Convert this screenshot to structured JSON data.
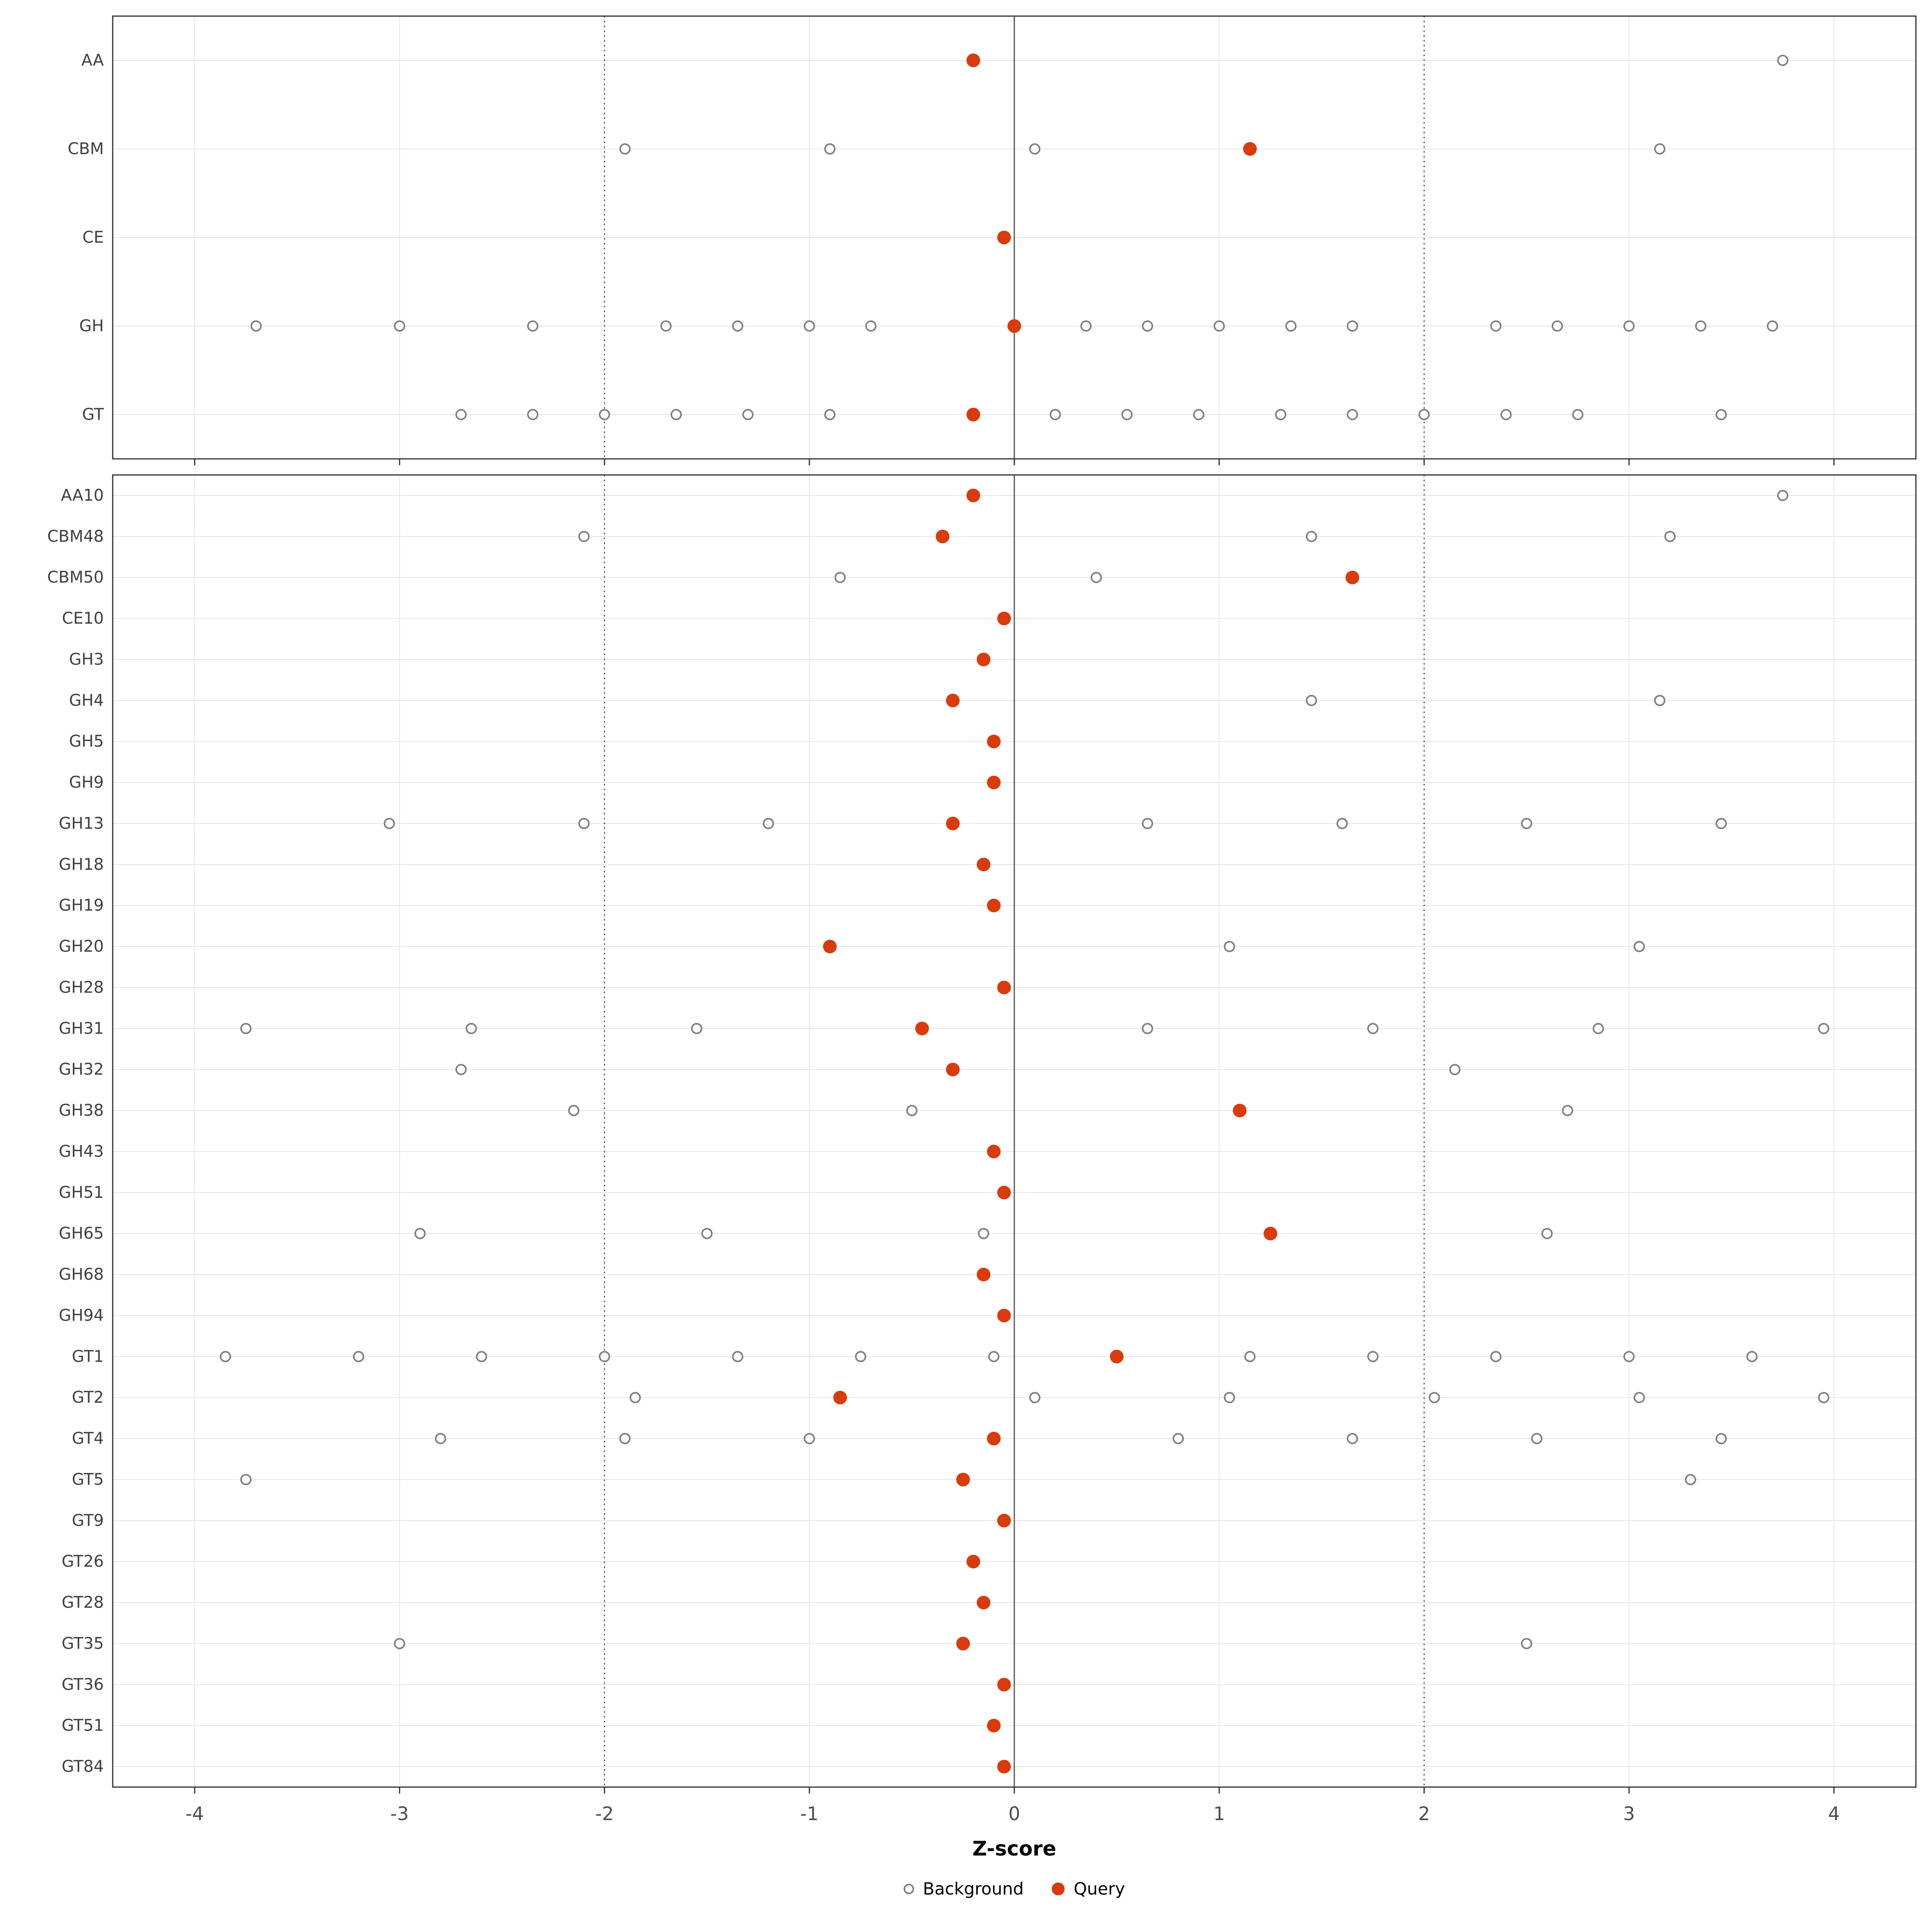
{
  "chart_data": {
    "type": "scatter",
    "title": "",
    "xlabel": "Z-score",
    "ylabel": "",
    "xlim": [
      -4.4,
      4.4
    ],
    "xticks": [
      -4,
      -3,
      -2,
      -1,
      0,
      1,
      2,
      3,
      4
    ],
    "grid": true,
    "legend_position": "bottom",
    "reference_lines": {
      "solid": [
        0
      ],
      "dotted": [
        -2,
        2
      ]
    },
    "legend": [
      {
        "label": "Background",
        "type": "open"
      },
      {
        "label": "Query",
        "type": "filled"
      }
    ],
    "colors": {
      "query": "#D93B0C",
      "background_stroke": "#808080",
      "grid": "#E5E5E5",
      "panel_border": "#333333",
      "zero_line": "#555555",
      "dotted_line": "#222222",
      "axis_text": "#4D4D4D",
      "y_label_text": "#404040"
    },
    "panels": [
      {
        "name": "category",
        "rows": [
          {
            "label": "AA",
            "query": -0.2,
            "background": [
              3.75
            ]
          },
          {
            "label": "CBM",
            "query": 1.15,
            "background": [
              -1.9,
              -0.9,
              0.1,
              3.15
            ]
          },
          {
            "label": "CE",
            "query": -0.05,
            "background": []
          },
          {
            "label": "GH",
            "query": 0.0,
            "background": [
              -3.7,
              -3.0,
              -2.35,
              -1.7,
              -1.35,
              -1.0,
              -0.7,
              0.35,
              0.65,
              1.0,
              1.35,
              1.65,
              2.35,
              2.65,
              3.0,
              3.35,
              3.7
            ]
          },
          {
            "label": "GT",
            "query": -0.2,
            "background": [
              -2.7,
              -2.35,
              -2.0,
              -1.65,
              -1.3,
              -0.9,
              0.2,
              0.55,
              0.9,
              1.3,
              1.65,
              2.0,
              2.4,
              2.75,
              3.45
            ]
          }
        ]
      },
      {
        "name": "family",
        "rows": [
          {
            "label": "AA10",
            "query": -0.2,
            "background": [
              3.75
            ]
          },
          {
            "label": "CBM48",
            "query": -0.35,
            "background": [
              -2.1,
              1.45,
              3.2
            ]
          },
          {
            "label": "CBM50",
            "query": 1.65,
            "background": [
              -0.85,
              0.4
            ]
          },
          {
            "label": "CE10",
            "query": -0.05,
            "background": []
          },
          {
            "label": "GH3",
            "query": -0.15,
            "background": []
          },
          {
            "label": "GH4",
            "query": -0.3,
            "background": [
              1.45,
              3.15
            ]
          },
          {
            "label": "GH5",
            "query": -0.1,
            "background": []
          },
          {
            "label": "GH9",
            "query": -0.1,
            "background": []
          },
          {
            "label": "GH13",
            "query": -0.3,
            "background": [
              -3.05,
              -2.1,
              -1.2,
              0.65,
              1.6,
              2.5,
              3.45
            ]
          },
          {
            "label": "GH18",
            "query": -0.15,
            "background": []
          },
          {
            "label": "GH19",
            "query": -0.1,
            "background": []
          },
          {
            "label": "GH20",
            "query": -0.9,
            "background": [
              1.05,
              3.05
            ]
          },
          {
            "label": "GH28",
            "query": -0.05,
            "background": []
          },
          {
            "label": "GH31",
            "query": -0.45,
            "background": [
              -3.75,
              -2.65,
              -1.55,
              0.65,
              1.75,
              2.85,
              3.95
            ]
          },
          {
            "label": "GH32",
            "query": -0.3,
            "background": [
              -2.7,
              2.15
            ]
          },
          {
            "label": "GH38",
            "query": 1.1,
            "background": [
              -2.15,
              -0.5,
              2.7
            ]
          },
          {
            "label": "GH43",
            "query": -0.1,
            "background": []
          },
          {
            "label": "GH51",
            "query": -0.05,
            "background": []
          },
          {
            "label": "GH65",
            "query": 1.25,
            "background": [
              -2.9,
              -1.5,
              -0.15,
              2.6
            ]
          },
          {
            "label": "GH68",
            "query": -0.15,
            "background": []
          },
          {
            "label": "GH94",
            "query": -0.05,
            "background": []
          },
          {
            "label": "GT1",
            "query": 0.5,
            "background": [
              -3.85,
              -3.2,
              -2.6,
              -2.0,
              -1.35,
              -0.75,
              -0.1,
              1.15,
              1.75,
              2.35,
              3.0,
              3.6
            ]
          },
          {
            "label": "GT2",
            "query": -0.85,
            "background": [
              -1.85,
              0.1,
              1.05,
              2.05,
              3.05,
              3.95
            ]
          },
          {
            "label": "GT4",
            "query": -0.1,
            "background": [
              -2.8,
              -1.9,
              -1.0,
              0.8,
              1.65,
              2.55,
              3.45
            ]
          },
          {
            "label": "GT5",
            "query": -0.25,
            "background": [
              -3.75,
              3.3
            ]
          },
          {
            "label": "GT9",
            "query": -0.05,
            "background": []
          },
          {
            "label": "GT26",
            "query": -0.2,
            "background": []
          },
          {
            "label": "GT28",
            "query": -0.15,
            "background": []
          },
          {
            "label": "GT35",
            "query": -0.25,
            "background": [
              -3.0,
              2.5
            ]
          },
          {
            "label": "GT36",
            "query": -0.05,
            "background": []
          },
          {
            "label": "GT51",
            "query": -0.1,
            "background": []
          },
          {
            "label": "GT84",
            "query": -0.05,
            "background": []
          }
        ]
      }
    ]
  }
}
